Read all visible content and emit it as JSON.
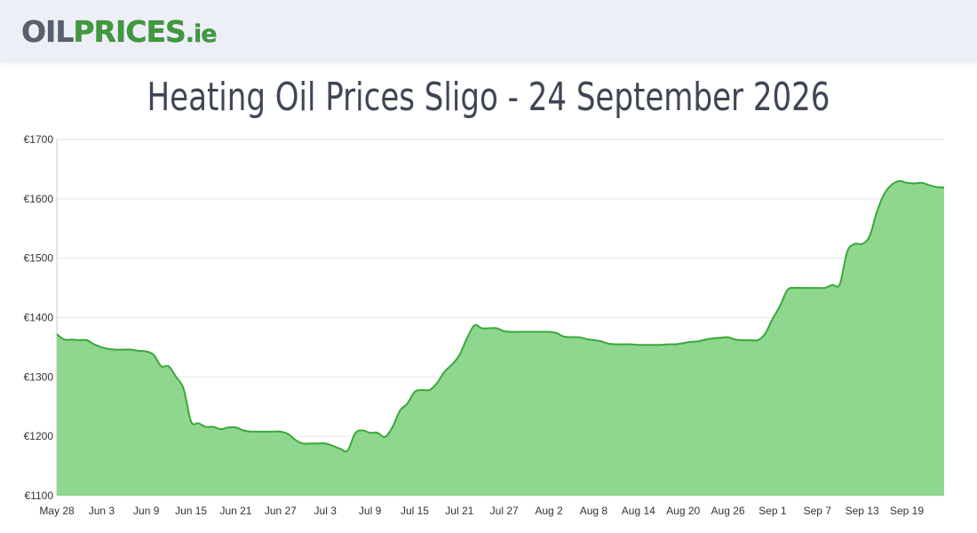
{
  "header": {
    "logo": {
      "part1": "OIL",
      "part2": "PRICES",
      "part3": ".ie"
    }
  },
  "colors": {
    "line": "#3aa83a",
    "fill": "#8fd68f",
    "grid": "#e6e6e6",
    "header_bg": "#eceff5"
  },
  "chart_data": {
    "type": "area",
    "title": "Heating Oil Prices Sligo - 24 September 2026",
    "xlabel": "",
    "ylabel": "",
    "ylim": [
      1100,
      1700
    ],
    "yticks": [
      1100,
      1200,
      1300,
      1400,
      1500,
      1600,
      1700
    ],
    "ytick_labels": [
      "€1100",
      "€1200",
      "€1300",
      "€1400",
      "€1500",
      "€1600",
      "€1700"
    ],
    "xtick_labels": [
      "May 28",
      "Jun 3",
      "Jun 9",
      "Jun 15",
      "Jun 21",
      "Jun 27",
      "Jul 3",
      "Jul 9",
      "Jul 15",
      "Jul 21",
      "Jul 27",
      "Aug 2",
      "Aug 8",
      "Aug 14",
      "Aug 20",
      "Aug 26",
      "Sep 1",
      "Sep 7",
      "Sep 13",
      "Sep 19"
    ],
    "grid": true,
    "series": [
      {
        "x": [
          "May 28",
          "May 29",
          "May 30",
          "May 31",
          "Jun 1",
          "Jun 2",
          "Jun 3",
          "Jun 4",
          "Jun 5",
          "Jun 6",
          "Jun 7",
          "Jun 8",
          "Jun 9",
          "Jun 10",
          "Jun 11",
          "Jun 12",
          "Jun 13",
          "Jun 14",
          "Jun 15",
          "Jun 16",
          "Jun 17",
          "Jun 18",
          "Jun 19",
          "Jun 20",
          "Jun 21",
          "Jun 22",
          "Jun 23",
          "Jun 24",
          "Jun 25",
          "Jun 26",
          "Jun 27",
          "Jun 28",
          "Jun 29",
          "Jun 30",
          "Jul 1",
          "Jul 2",
          "Jul 3",
          "Jul 4",
          "Jul 5",
          "Jul 6",
          "Jul 7",
          "Jul 8",
          "Jul 9",
          "Jul 10",
          "Jul 11",
          "Jul 12",
          "Jul 13",
          "Jul 14",
          "Jul 15",
          "Jul 16",
          "Jul 17",
          "Jul 18",
          "Jul 19",
          "Jul 20",
          "Jul 21",
          "Jul 22",
          "Jul 23",
          "Jul 24",
          "Jul 25",
          "Jul 26",
          "Jul 27",
          "Jul 28",
          "Jul 29",
          "Jul 30",
          "Jul 31",
          "Aug 1",
          "Aug 2",
          "Aug 3",
          "Aug 4",
          "Aug 5",
          "Aug 6",
          "Aug 7",
          "Aug 8",
          "Aug 9",
          "Aug 10",
          "Aug 11",
          "Aug 12",
          "Aug 13",
          "Aug 14",
          "Aug 15",
          "Aug 16",
          "Aug 17",
          "Aug 18",
          "Aug 19",
          "Aug 20",
          "Aug 21",
          "Aug 22",
          "Aug 23",
          "Aug 24",
          "Aug 25",
          "Aug 26",
          "Aug 27",
          "Aug 28",
          "Aug 29",
          "Aug 30",
          "Aug 31",
          "Sep 1",
          "Sep 2",
          "Sep 3",
          "Sep 4",
          "Sep 5",
          "Sep 6",
          "Sep 7",
          "Sep 8",
          "Sep 9",
          "Sep 10",
          "Sep 11",
          "Sep 12",
          "Sep 13",
          "Sep 14",
          "Sep 15",
          "Sep 16",
          "Sep 17",
          "Sep 18",
          "Sep 19",
          "Sep 20",
          "Sep 21",
          "Sep 22",
          "Sep 23",
          "Sep 24"
        ],
        "values": [
          1372,
          1363,
          1363,
          1362,
          1362,
          1355,
          1350,
          1347,
          1346,
          1346,
          1346,
          1344,
          1343,
          1337,
          1318,
          1318,
          1300,
          1280,
          1225,
          1222,
          1216,
          1216,
          1212,
          1215,
          1215,
          1210,
          1208,
          1208,
          1208,
          1208,
          1208,
          1204,
          1194,
          1188,
          1188,
          1188,
          1188,
          1184,
          1179,
          1176,
          1205,
          1210,
          1206,
          1206,
          1199,
          1215,
          1243,
          1255,
          1275,
          1278,
          1278,
          1290,
          1309,
          1321,
          1337,
          1365,
          1387,
          1382,
          1382,
          1382,
          1377,
          1376,
          1376,
          1376,
          1376,
          1376,
          1376,
          1374,
          1368,
          1367,
          1367,
          1364,
          1362,
          1360,
          1356,
          1355,
          1355,
          1355,
          1354,
          1354,
          1354,
          1354,
          1355,
          1355,
          1357,
          1359,
          1360,
          1363,
          1365,
          1366,
          1367,
          1363,
          1362,
          1362,
          1362,
          1373,
          1398,
          1420,
          1447,
          1450,
          1450,
          1450,
          1450,
          1450,
          1455,
          1456,
          1511,
          1524,
          1524,
          1537,
          1579,
          1609,
          1624,
          1630,
          1627,
          1626,
          1627,
          1623,
          1620,
          1619
        ]
      }
    ]
  }
}
